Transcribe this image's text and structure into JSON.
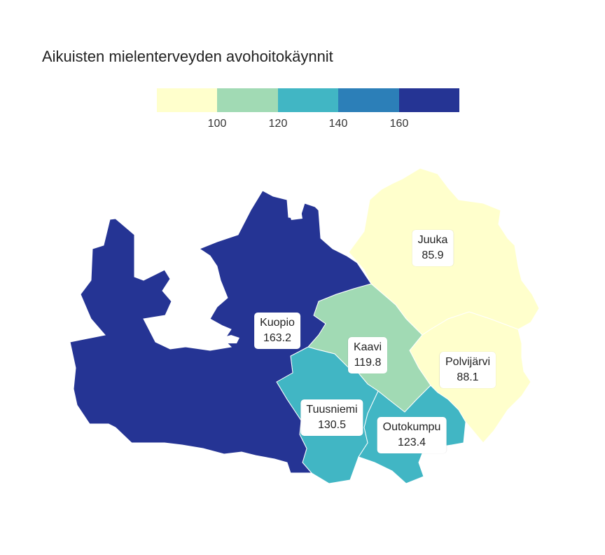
{
  "title": "Aikuisten mielenterveyden avohoitokäynnit",
  "legend": {
    "colors": [
      "#ffffcc",
      "#a1dab4",
      "#41b6c4",
      "#2c7fb8",
      "#253494"
    ],
    "ticks": [
      "100",
      "120",
      "140",
      "160"
    ]
  },
  "regions": [
    {
      "name": "Kuopio",
      "value": "163.2",
      "color": "#253494"
    },
    {
      "name": "Juuka",
      "value": "85.9",
      "color": "#ffffcc"
    },
    {
      "name": "Kaavi",
      "value": "119.8",
      "color": "#a1dab4"
    },
    {
      "name": "Polvijärvi",
      "value": "88.1",
      "color": "#ffffcc"
    },
    {
      "name": "Tuusniemi",
      "value": "130.5",
      "color": "#41b6c4"
    },
    {
      "name": "Outokumpu",
      "value": "123.4",
      "color": "#41b6c4"
    }
  ]
}
